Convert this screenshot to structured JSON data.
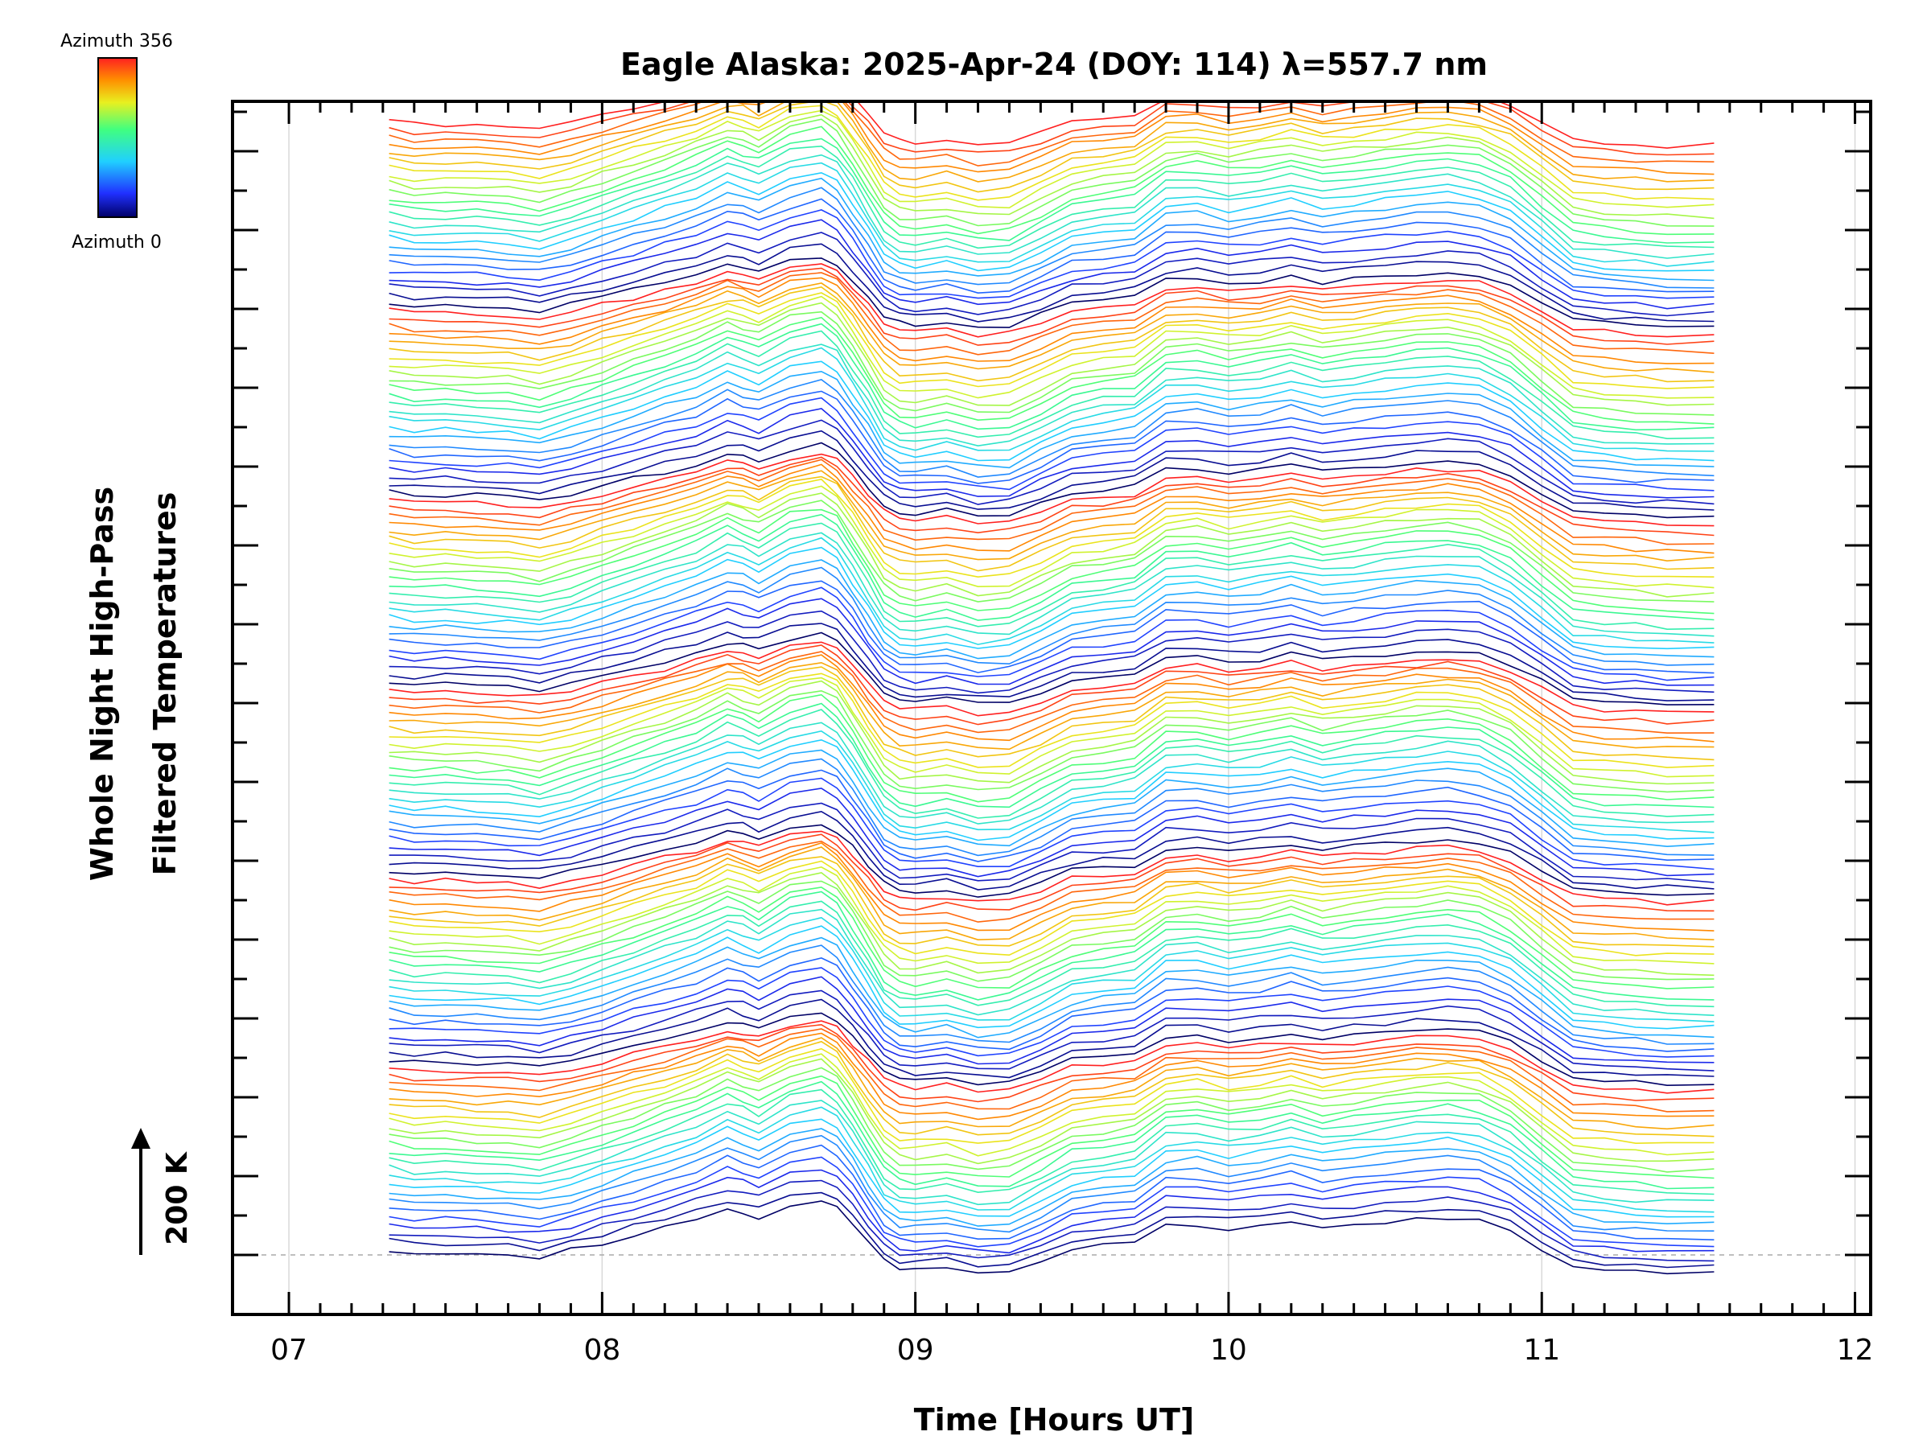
{
  "chart_data": {
    "type": "line",
    "title": "Eagle Alaska: 2025-Apr-24 (DOY: 114) λ=557.7 nm",
    "xlabel": "Time [Hours UT]",
    "ylabel_lines": [
      "Whole Night High-Pass",
      "Filtered Temperatures"
    ],
    "xlim": [
      6.82,
      12.05
    ],
    "x_ticks": [
      "07",
      "08",
      "09",
      "10",
      "11",
      "12"
    ],
    "x_tick_values": [
      7,
      8,
      9,
      10,
      11,
      12
    ],
    "y_axis_labels_shown": false,
    "scale_bar": {
      "label": "200 K",
      "value_K": 200
    },
    "colorbar": {
      "top_label": "Azimuth 356",
      "bottom_label": "Azimuth 0",
      "colormap": "rainbow (blue to red)"
    },
    "stack": {
      "n_traces": 144,
      "azimuth_min": 0,
      "azimuth_max": 356,
      "n_azimuth_sweeps": 6
    },
    "x_range_data": [
      7.32,
      11.55
    ],
    "template_profile": {
      "x": [
        7.32,
        7.4,
        7.5,
        7.6,
        7.7,
        7.8,
        7.9,
        8.0,
        8.1,
        8.2,
        8.3,
        8.4,
        8.45,
        8.5,
        8.6,
        8.7,
        8.75,
        8.8,
        8.85,
        8.9,
        8.95,
        9.0,
        9.1,
        9.2,
        9.3,
        9.4,
        9.5,
        9.6,
        9.7,
        9.8,
        9.9,
        10.0,
        10.1,
        10.2,
        10.3,
        10.4,
        10.5,
        10.6,
        10.7,
        10.8,
        10.9,
        11.0,
        11.1,
        11.2,
        11.3,
        11.4,
        11.55
      ],
      "y_K": [
        20,
        10,
        12,
        8,
        5,
        -5,
        15,
        40,
        65,
        90,
        115,
        150,
        140,
        125,
        165,
        180,
        155,
        100,
        40,
        -20,
        -45,
        -50,
        -40,
        -60,
        -55,
        -20,
        20,
        30,
        40,
        95,
        100,
        85,
        95,
        110,
        90,
        100,
        110,
        120,
        125,
        115,
        80,
        20,
        -40,
        -50,
        -55,
        -60,
        -60
      ]
    },
    "trace_spacing_K": 20,
    "legend": "colorbar top-left"
  }
}
